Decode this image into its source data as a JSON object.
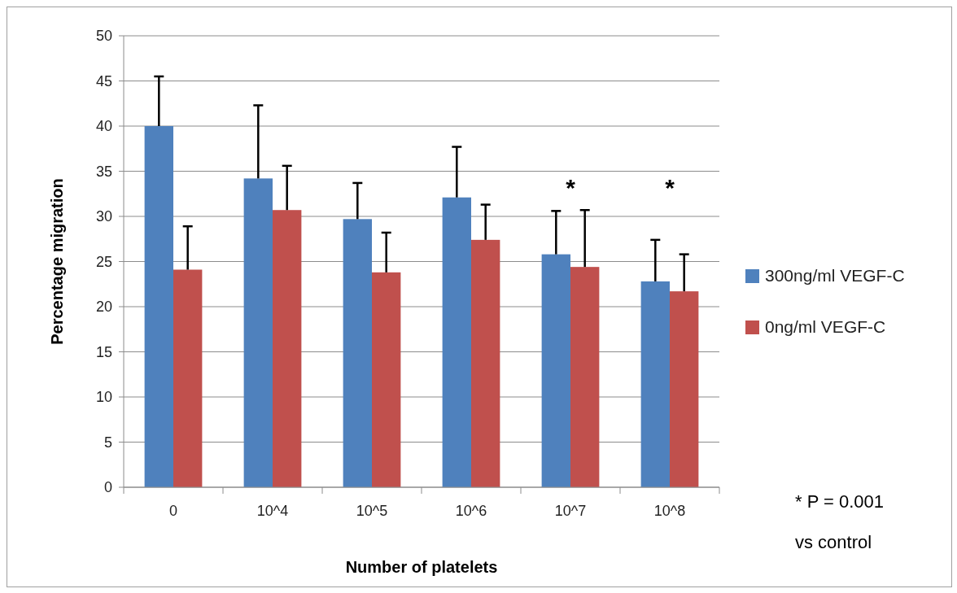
{
  "chart_data": {
    "type": "bar",
    "xlabel": "Number of platelets",
    "ylabel": "Percentage migration",
    "categories": [
      "0",
      "10^4",
      "10^5",
      "10^6",
      "10^7",
      "10^8"
    ],
    "series": [
      {
        "name": "300ng/ml VEGF-C",
        "color": "#4f81bd",
        "values": [
          40,
          34.2,
          29.7,
          32.1,
          25.8,
          22.8
        ],
        "errors": [
          [
            40,
            45.5
          ],
          [
            34.2,
            42.3
          ],
          [
            29.7,
            33.7
          ],
          [
            32.1,
            37.7
          ],
          [
            25.8,
            30.6
          ],
          [
            22.8,
            27.4
          ]
        ]
      },
      {
        "name": "0ng/ml VEGF-C",
        "color": "#c0504d",
        "values": [
          24.1,
          30.7,
          23.8,
          27.4,
          24.4,
          21.7
        ],
        "errors": [
          [
            24.1,
            28.9
          ],
          [
            30.7,
            35.6
          ],
          [
            23.8,
            28.2
          ],
          [
            27.4,
            31.3
          ],
          [
            24.4,
            30.7
          ],
          [
            21.7,
            25.8
          ]
        ]
      }
    ],
    "ylim": [
      0,
      50
    ],
    "yticks": [
      0,
      5,
      10,
      15,
      20,
      25,
      30,
      35,
      40,
      45,
      50
    ],
    "grid": "y",
    "legend": "right",
    "annotations": [
      "*",
      "*",
      "* P = 0.001",
      "vs control"
    ]
  }
}
